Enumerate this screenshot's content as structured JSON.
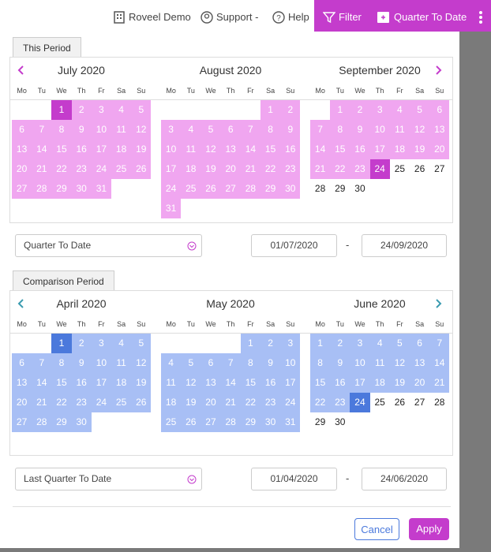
{
  "header": {
    "user": "Roveel Demo",
    "support": "Support -",
    "help": "Help",
    "filter": "Filter",
    "period": "Quarter To Date"
  },
  "weekdays": [
    "Mo",
    "Tu",
    "We",
    "Th",
    "Fr",
    "Sa",
    "Su"
  ],
  "periods": [
    {
      "tab": "This Period",
      "range_color": "#f0a6f0",
      "marked_color": "#c43ccc",
      "arrow_color": "#c43ccc",
      "months": [
        {
          "name": "July 2020",
          "highlight_through": 31,
          "marked": 1,
          "weeks": [
            [
              null,
              null,
              1,
              2,
              3,
              4,
              5
            ],
            [
              6,
              7,
              8,
              9,
              10,
              11,
              12
            ],
            [
              13,
              14,
              15,
              16,
              17,
              18,
              19
            ],
            [
              20,
              21,
              22,
              23,
              24,
              25,
              26
            ],
            [
              27,
              28,
              29,
              30,
              31
            ]
          ]
        },
        {
          "name": "August 2020",
          "highlight_through": 31,
          "marked": null,
          "weeks": [
            [
              null,
              null,
              null,
              null,
              null,
              1,
              2
            ],
            [
              3,
              4,
              5,
              6,
              7,
              8,
              9
            ],
            [
              10,
              11,
              12,
              13,
              14,
              15,
              16
            ],
            [
              17,
              18,
              19,
              20,
              21,
              22,
              23
            ],
            [
              24,
              25,
              26,
              27,
              28,
              29,
              30
            ],
            [
              31
            ]
          ]
        },
        {
          "name": "September 2020",
          "highlight_through": 23,
          "marked": 24,
          "weeks": [
            [
              null,
              1,
              2,
              3,
              4,
              5,
              6
            ],
            [
              7,
              8,
              9,
              10,
              11,
              12,
              13
            ],
            [
              14,
              15,
              16,
              17,
              18,
              19,
              20
            ],
            [
              21,
              22,
              23,
              24,
              25,
              26,
              27
            ],
            [
              28,
              29,
              30
            ]
          ]
        }
      ],
      "preset": "Quarter To Date",
      "from": "01/07/2020",
      "separator": "-",
      "to": "24/09/2020"
    },
    {
      "tab": "Comparison Period",
      "range_color": "#a8bff5",
      "marked_color": "#4b79dc",
      "arrow_color": "#3a9bb0",
      "months": [
        {
          "name": "April 2020",
          "highlight_through": 30,
          "marked": 1,
          "weeks": [
            [
              null,
              null,
              1,
              2,
              3,
              4,
              5
            ],
            [
              6,
              7,
              8,
              9,
              10,
              11,
              12
            ],
            [
              13,
              14,
              15,
              16,
              17,
              18,
              19
            ],
            [
              20,
              21,
              22,
              23,
              24,
              25,
              26
            ],
            [
              27,
              28,
              29,
              30
            ]
          ]
        },
        {
          "name": "May 2020",
          "highlight_through": 31,
          "marked": null,
          "weeks": [
            [
              null,
              null,
              null,
              null,
              1,
              2,
              3
            ],
            [
              4,
              5,
              6,
              7,
              8,
              9,
              10
            ],
            [
              11,
              12,
              13,
              14,
              15,
              16,
              17
            ],
            [
              18,
              19,
              20,
              21,
              22,
              23,
              24
            ],
            [
              25,
              26,
              27,
              28,
              29,
              30,
              31
            ]
          ]
        },
        {
          "name": "June 2020",
          "highlight_through": 23,
          "marked": 24,
          "weeks": [
            [
              1,
              2,
              3,
              4,
              5,
              6,
              7
            ],
            [
              8,
              9,
              10,
              11,
              12,
              13,
              14
            ],
            [
              15,
              16,
              17,
              18,
              19,
              20,
              21
            ],
            [
              22,
              23,
              24,
              25,
              26,
              27,
              28
            ],
            [
              29,
              30
            ]
          ]
        }
      ],
      "preset": "Last Quarter To Date",
      "from": "01/04/2020",
      "separator": "-",
      "to": "24/06/2020"
    }
  ],
  "buttons": {
    "cancel": "Cancel",
    "apply": "Apply"
  }
}
